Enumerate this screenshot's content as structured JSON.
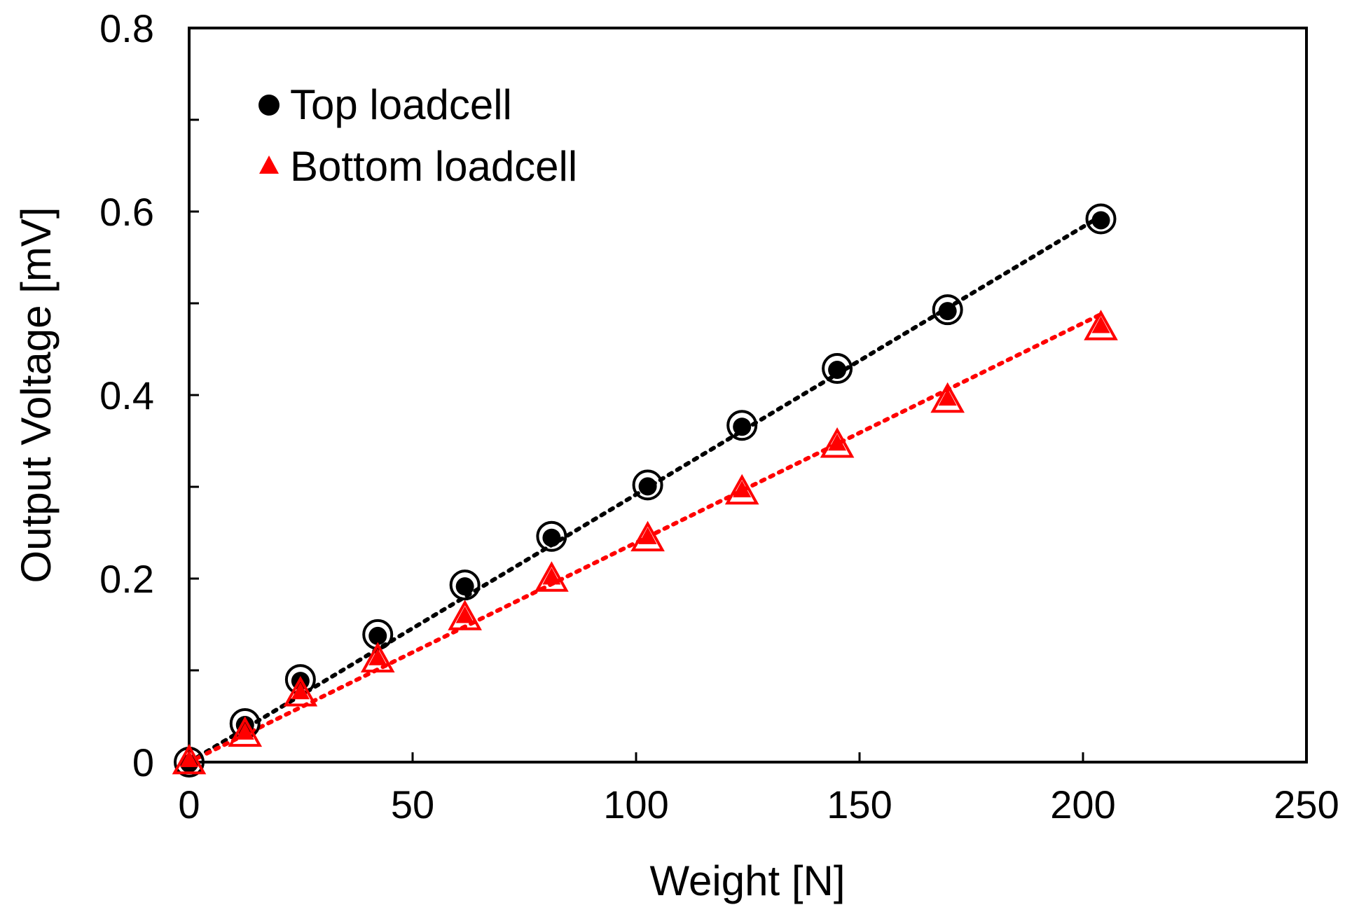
{
  "chart_data": {
    "type": "scatter",
    "xlabel": "Weight [N]",
    "ylabel": "Output Voltage [mV]",
    "xlim": [
      0,
      250
    ],
    "ylim": [
      0,
      0.8
    ],
    "xticks": [
      0,
      50,
      100,
      150,
      200,
      250
    ],
    "xtick_labels": [
      "0",
      "50",
      "100",
      "150",
      "200",
      "250"
    ],
    "yticks": [
      0,
      0.2,
      0.4,
      0.6,
      0.8
    ],
    "ytick_labels": [
      "0",
      "0.2",
      "0.4",
      "0.6",
      "0.8"
    ],
    "y_minor_ticks": [
      0.1,
      0.3,
      0.5,
      0.7
    ],
    "grid": false,
    "legend_position": "top-left",
    "series": [
      {
        "name": "Top loadcell",
        "marker": "circle",
        "color": "#000000",
        "trendline": "dotted",
        "x": [
          0,
          12.5,
          24.9,
          42.2,
          61.7,
          81.1,
          102.6,
          123.7,
          145.0,
          169.7,
          204.0
        ],
        "y": [
          0,
          0.042,
          0.09,
          0.139,
          0.193,
          0.246,
          0.302,
          0.367,
          0.429,
          0.493,
          0.592
        ]
      },
      {
        "name": "Bottom loadcell",
        "marker": "triangle",
        "color": "#ff0000",
        "trendline": "dotted",
        "x": [
          0,
          12.5,
          24.9,
          42.2,
          61.7,
          81.1,
          102.6,
          123.7,
          145.0,
          169.7,
          204.0
        ],
        "y": [
          0,
          0.03,
          0.074,
          0.111,
          0.157,
          0.199,
          0.243,
          0.294,
          0.345,
          0.394,
          0.473
        ]
      }
    ],
    "trendlines": [
      {
        "series": "Top loadcell",
        "x": [
          0,
          204.0
        ],
        "y": [
          0,
          0.595
        ]
      },
      {
        "series": "Bottom loadcell",
        "x": [
          0,
          204.0
        ],
        "y": [
          0,
          0.488
        ]
      }
    ]
  }
}
